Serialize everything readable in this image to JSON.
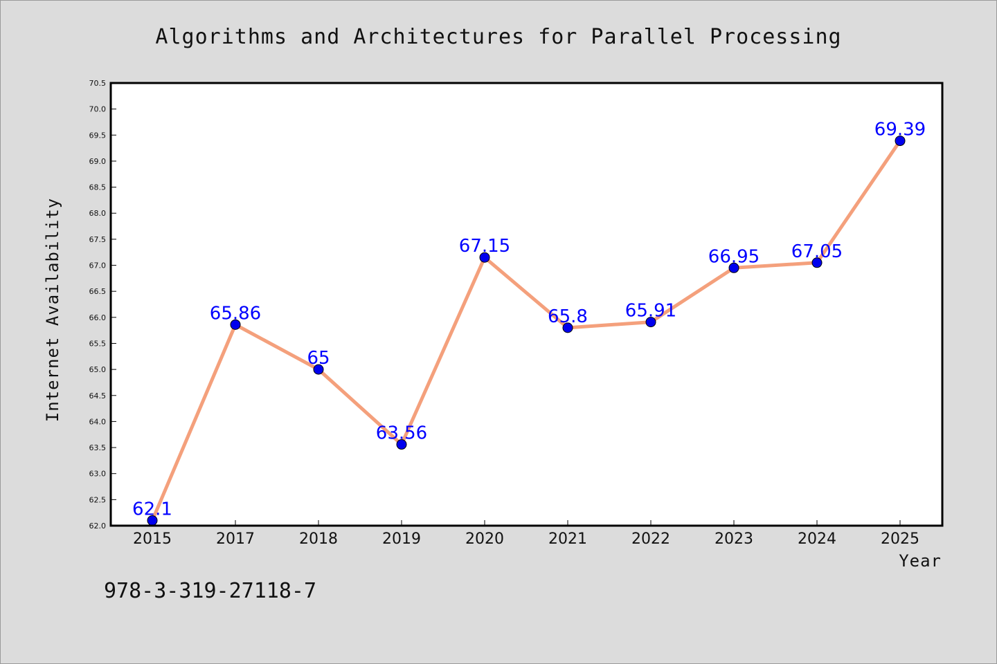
{
  "chart_data": {
    "type": "line",
    "title": "Algorithms and Architectures for Parallel Processing",
    "xlabel": "Year",
    "ylabel": "Internet Availability",
    "categories": [
      "2015",
      "2017",
      "2018",
      "2019",
      "2020",
      "2021",
      "2022",
      "2023",
      "2024",
      "2025"
    ],
    "series": [
      {
        "values": [
          62.1,
          65.86,
          65.0,
          63.56,
          67.15,
          65.8,
          65.91,
          66.95,
          67.05,
          69.39
        ],
        "labels": [
          "62.1",
          "65.86",
          "65",
          "63.56",
          "67.15",
          "65.8",
          "65.91",
          "66.95",
          "67.05",
          "69.39"
        ]
      }
    ],
    "ylim": [
      62.0,
      70.5
    ],
    "yticks": [
      "62.0",
      "62.5",
      "63.0",
      "63.5",
      "64.0",
      "64.5",
      "65.0",
      "65.5",
      "66.0",
      "66.5",
      "67.0",
      "67.5",
      "68.0",
      "68.5",
      "69.0",
      "69.5",
      "70.0",
      "70.5"
    ],
    "line_color": "#f4a07c",
    "marker_color": "#0000ee",
    "label_color": "#0000ff",
    "grid": false
  },
  "footer": {
    "text": "978-3-319-27118-7"
  }
}
